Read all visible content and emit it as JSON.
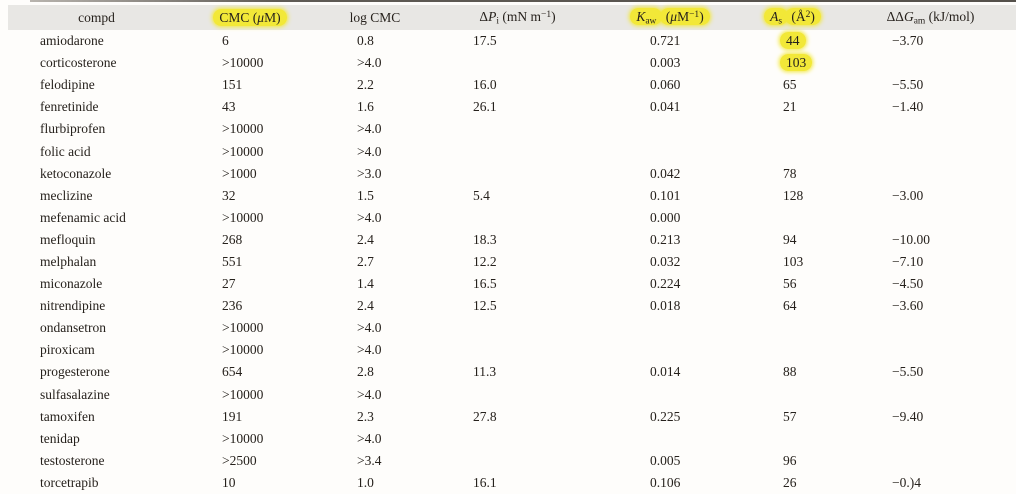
{
  "colors": {
    "highlight": "#f2e838",
    "header_background": "#e8e7e4",
    "text": "#26211c"
  },
  "table": {
    "columns": [
      {
        "id": "compd",
        "header": [
          {
            "hl": false,
            "parts": [
              {
                "t": "compd"
              }
            ]
          }
        ]
      },
      {
        "id": "cmc",
        "header": [
          {
            "hl": true,
            "parts": [
              {
                "t": "CMC ("
              },
              {
                "t": "μ",
                "i": true
              },
              {
                "t": "M)"
              }
            ]
          }
        ]
      },
      {
        "id": "log-cmc",
        "header": [
          {
            "hl": false,
            "parts": [
              {
                "t": "log CMC"
              }
            ]
          }
        ]
      },
      {
        "id": "delta-p",
        "header": [
          {
            "hl": false,
            "parts": [
              {
                "t": "Δ"
              },
              {
                "t": "P",
                "i": true
              },
              {
                "t": "i",
                "sub": true
              },
              {
                "t": " (mN m"
              },
              {
                "t": "−1",
                "sup": true
              },
              {
                "t": ")"
              }
            ]
          }
        ]
      },
      {
        "id": "kaw",
        "header": [
          {
            "hl": true,
            "parts": [
              {
                "t": "K",
                "i": true
              },
              {
                "t": "aw",
                "sub": true
              }
            ]
          },
          {
            "hl": true,
            "parts": [
              {
                "t": "("
              },
              {
                "t": "μ",
                "i": true
              },
              {
                "t": "M"
              },
              {
                "t": "−1",
                "sup": true
              },
              {
                "t": ")"
              }
            ]
          }
        ]
      },
      {
        "id": "as",
        "header": [
          {
            "hl": true,
            "parts": [
              {
                "t": "A",
                "i": true
              },
              {
                "t": "s",
                "sub": true
              }
            ]
          },
          {
            "hl": true,
            "parts": [
              {
                "t": "(Å"
              },
              {
                "t": "2",
                "sup": true
              },
              {
                "t": ")"
              }
            ]
          }
        ]
      },
      {
        "id": "ddg",
        "header": [
          {
            "hl": false,
            "parts": [
              {
                "t": "ΔΔ"
              },
              {
                "t": "G",
                "i": true
              },
              {
                "t": "am",
                "sub": true
              },
              {
                "t": " (kJ/mol)"
              }
            ]
          }
        ]
      }
    ],
    "rows": [
      {
        "cells": [
          "amiodarone",
          "6",
          "0.8",
          "17.5",
          "0.721",
          "44",
          "−3.70"
        ],
        "hl": [
          5
        ]
      },
      {
        "cells": [
          "corticosterone",
          ">10000",
          ">4.0",
          "",
          "0.003",
          "103",
          ""
        ],
        "hl": [
          5
        ]
      },
      {
        "cells": [
          "felodipine",
          "151",
          "2.2",
          "16.0",
          "0.060",
          "65",
          "−5.50"
        ],
        "hl": []
      },
      {
        "cells": [
          "fenretinide",
          "43",
          "1.6",
          "26.1",
          "0.041",
          "21",
          "−1.40"
        ],
        "hl": []
      },
      {
        "cells": [
          "flurbiprofen",
          ">10000",
          ">4.0",
          "",
          "",
          "",
          ""
        ],
        "hl": []
      },
      {
        "cells": [
          "folic acid",
          ">10000",
          ">4.0",
          "",
          "",
          "",
          ""
        ],
        "hl": []
      },
      {
        "cells": [
          "ketoconazole",
          ">1000",
          ">3.0",
          "",
          "0.042",
          "78",
          ""
        ],
        "hl": []
      },
      {
        "cells": [
          "meclizine",
          "32",
          "1.5",
          "5.4",
          "0.101",
          "128",
          "−3.00"
        ],
        "hl": []
      },
      {
        "cells": [
          "mefenamic acid",
          ">10000",
          ">4.0",
          "",
          "0.000",
          "",
          ""
        ],
        "hl": []
      },
      {
        "cells": [
          "mefloquin",
          "268",
          "2.4",
          "18.3",
          "0.213",
          "94",
          "−10.00"
        ],
        "hl": []
      },
      {
        "cells": [
          "melphalan",
          "551",
          "2.7",
          "12.2",
          "0.032",
          "103",
          "−7.10"
        ],
        "hl": []
      },
      {
        "cells": [
          "miconazole",
          "27",
          "1.4",
          "16.5",
          "0.224",
          "56",
          "−4.50"
        ],
        "hl": []
      },
      {
        "cells": [
          "nitrendipine",
          "236",
          "2.4",
          "12.5",
          "0.018",
          "64",
          "−3.60"
        ],
        "hl": []
      },
      {
        "cells": [
          "ondansetron",
          ">10000",
          ">4.0",
          "",
          "",
          "",
          ""
        ],
        "hl": []
      },
      {
        "cells": [
          "piroxicam",
          ">10000",
          ">4.0",
          "",
          "",
          "",
          ""
        ],
        "hl": []
      },
      {
        "cells": [
          "progesterone",
          "654",
          "2.8",
          "11.3",
          "0.014",
          "88",
          "−5.50"
        ],
        "hl": []
      },
      {
        "cells": [
          "sulfasalazine",
          ">10000",
          ">4.0",
          "",
          "",
          "",
          ""
        ],
        "hl": []
      },
      {
        "cells": [
          "tamoxifen",
          "191",
          "2.3",
          "27.8",
          "0.225",
          "57",
          "−9.40"
        ],
        "hl": []
      },
      {
        "cells": [
          "tenidap",
          ">10000",
          ">4.0",
          "",
          "",
          "",
          ""
        ],
        "hl": []
      },
      {
        "cells": [
          "testosterone",
          ">2500",
          ">3.4",
          "",
          "0.005",
          "96",
          ""
        ],
        "hl": []
      },
      {
        "cells": [
          "torcetrapib",
          "10",
          "1.0",
          "16.1",
          "0.106",
          "26",
          "−0.)4"
        ],
        "hl": []
      }
    ]
  }
}
